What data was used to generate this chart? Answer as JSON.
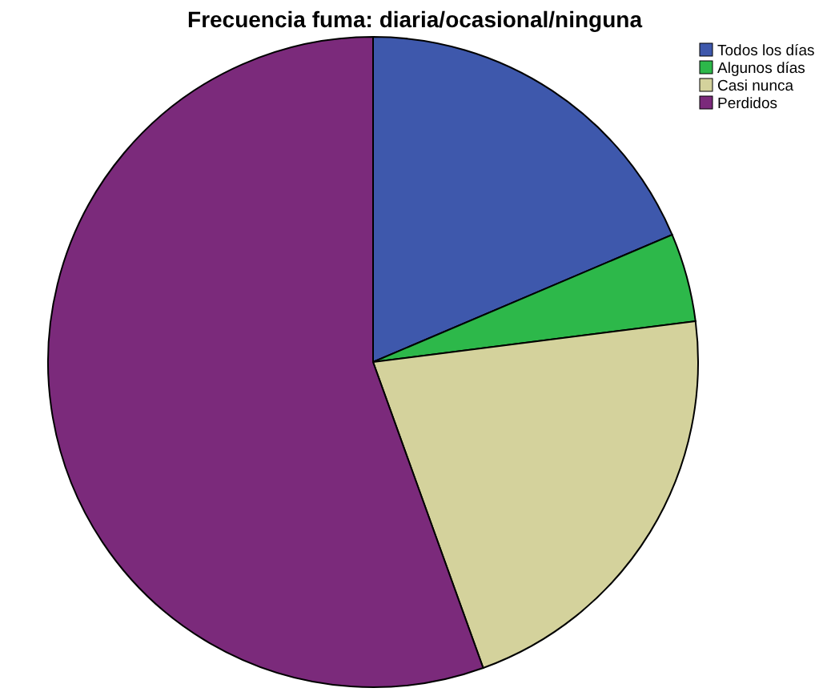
{
  "chart_data": {
    "type": "pie",
    "title": "Frecuencia fuma: diaria/ocasional/ninguna",
    "categories": [
      "Todos los días",
      "Algunos días",
      "Casi nunca",
      "Perdidos"
    ],
    "values": [
      18.6,
      4.4,
      21.5,
      55.5
    ],
    "colors": [
      "#3e58ac",
      "#2db84a",
      "#d4d29c",
      "#7b2a7b"
    ],
    "legend": "top right"
  }
}
